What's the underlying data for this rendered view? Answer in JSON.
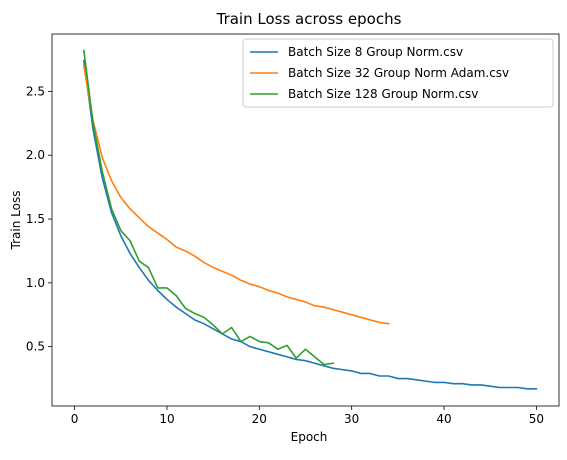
{
  "chart_data": {
    "type": "line",
    "title": "Train Loss across epochs",
    "xlabel": "Epoch",
    "ylabel": "Train Loss",
    "xlim": [
      -2.45,
      52.45
    ],
    "ylim": [
      0.035,
      2.95
    ],
    "xticks": [
      0,
      10,
      20,
      30,
      40,
      50
    ],
    "yticks": [
      0.5,
      1.0,
      1.5,
      2.0,
      2.5
    ],
    "xtick_labels": [
      "0",
      "10",
      "20",
      "30",
      "40",
      "50"
    ],
    "ytick_labels": [
      "0.5",
      "1.0",
      "1.5",
      "2.0",
      "2.5"
    ],
    "grid": false,
    "legend_position": "top-right",
    "series": [
      {
        "name": "Batch Size 8 Group Norm.csv",
        "color": "#1f77b4",
        "x": [
          1,
          2,
          3,
          4,
          5,
          6,
          7,
          8,
          9,
          10,
          11,
          12,
          13,
          14,
          15,
          16,
          17,
          18,
          19,
          20,
          21,
          22,
          23,
          24,
          25,
          26,
          27,
          28,
          29,
          30,
          31,
          32,
          33,
          34,
          35,
          36,
          37,
          38,
          39,
          40,
          41,
          42,
          43,
          44,
          45,
          46,
          47,
          48,
          49,
          50
        ],
        "values": [
          2.74,
          2.2,
          1.82,
          1.55,
          1.37,
          1.23,
          1.12,
          1.02,
          0.94,
          0.87,
          0.81,
          0.76,
          0.71,
          0.68,
          0.64,
          0.6,
          0.56,
          0.54,
          0.5,
          0.48,
          0.46,
          0.44,
          0.42,
          0.4,
          0.39,
          0.37,
          0.35,
          0.33,
          0.32,
          0.31,
          0.29,
          0.29,
          0.27,
          0.27,
          0.25,
          0.25,
          0.24,
          0.23,
          0.22,
          0.22,
          0.21,
          0.21,
          0.2,
          0.2,
          0.19,
          0.18,
          0.18,
          0.18,
          0.17,
          0.17
        ]
      },
      {
        "name": "Batch Size 32 Group Norm Adam.csv",
        "color": "#ff7f0e",
        "x": [
          1,
          2,
          3,
          4,
          5,
          6,
          7,
          8,
          9,
          10,
          11,
          12,
          13,
          14,
          15,
          16,
          17,
          18,
          19,
          20,
          21,
          22,
          23,
          24,
          25,
          26,
          27,
          28,
          29,
          30,
          31,
          32,
          33,
          34
        ],
        "values": [
          2.7,
          2.27,
          1.98,
          1.8,
          1.67,
          1.58,
          1.51,
          1.44,
          1.39,
          1.34,
          1.28,
          1.25,
          1.21,
          1.16,
          1.12,
          1.09,
          1.06,
          1.02,
          0.99,
          0.97,
          0.94,
          0.92,
          0.89,
          0.87,
          0.85,
          0.82,
          0.81,
          0.79,
          0.77,
          0.75,
          0.73,
          0.71,
          0.69,
          0.68
        ]
      },
      {
        "name": "Batch Size 128 Group Norm.csv",
        "color": "#2ca02c",
        "x": [
          1,
          2,
          3,
          4,
          5,
          6,
          7,
          8,
          9,
          10,
          11,
          12,
          13,
          14,
          15,
          16,
          17,
          18,
          19,
          20,
          21,
          22,
          23,
          24,
          25,
          26,
          27,
          28
        ],
        "values": [
          2.82,
          2.25,
          1.87,
          1.58,
          1.41,
          1.33,
          1.17,
          1.12,
          0.96,
          0.96,
          0.9,
          0.8,
          0.76,
          0.73,
          0.67,
          0.6,
          0.65,
          0.54,
          0.58,
          0.54,
          0.53,
          0.48,
          0.51,
          0.41,
          0.48,
          0.42,
          0.36,
          0.37
        ]
      }
    ]
  }
}
